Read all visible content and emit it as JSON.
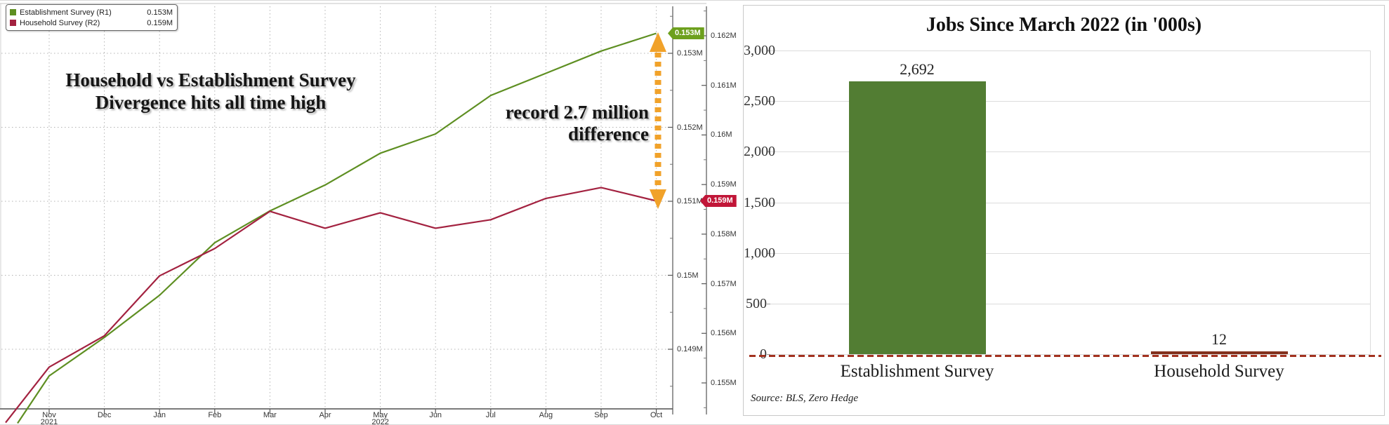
{
  "accent_colors": {
    "establishment_green": "#5e8f22",
    "household_red": "#a32240",
    "bar_green": "#527d33",
    "arrow_orange": "#f1a22a",
    "zero_line_red": "#a3321f",
    "badge_green": "#6da01e",
    "badge_red": "#c11638"
  },
  "chart_data": [
    {
      "type": "line",
      "title_annotation": [
        "Household vs Establishment Survey",
        "Divergence hits all time high"
      ],
      "difference_annotation": [
        "record 2.7 million",
        "difference"
      ],
      "x_tick_labels": [
        "Nov",
        "Dec",
        "Jan",
        "Feb",
        "Mar",
        "Apr",
        "May",
        "Jun",
        "Jul",
        "Aug",
        "Sep",
        "Oct"
      ],
      "x_year_labels": [
        {
          "month_index": 0,
          "text": "2021"
        },
        {
          "month_index": 6,
          "text": "2022"
        }
      ],
      "series": [
        {
          "name": "Establishment Survey (R1)",
          "axis": "R1",
          "color": "#5e8f22",
          "current_label": "0.153M",
          "lead_in_value": 0.148,
          "values": [
            0.14864,
            0.14916,
            0.14973,
            0.15044,
            0.15087,
            0.15122,
            0.15165,
            0.15191,
            0.15243,
            0.15273,
            0.15303,
            0.15327
          ]
        },
        {
          "name": "Household Survey (R2)",
          "axis": "R2",
          "color": "#a32240",
          "current_label": "0.159M",
          "lead_in_value": 0.1542,
          "values": [
            0.15532,
            0.15595,
            0.15716,
            0.15771,
            0.15846,
            0.15812,
            0.15843,
            0.15812,
            0.15829,
            0.15872,
            0.15894,
            0.15867
          ]
        }
      ],
      "axis_r1": {
        "tick_labels": [
          "0.153M",
          "0.152M",
          "0.151M",
          "0.15M",
          "0.149M"
        ],
        "tick_values": [
          0.153,
          0.152,
          0.151,
          0.15,
          0.149
        ]
      },
      "axis_r2": {
        "tick_labels": [
          "0.162M",
          "0.161M",
          "0.16M",
          "0.159M",
          "0.158M",
          "0.157M",
          "0.156M",
          "0.155M"
        ],
        "tick_values": [
          0.162,
          0.161,
          0.16,
          0.159,
          0.158,
          0.157,
          0.156,
          0.155
        ]
      },
      "badges": [
        {
          "text": "0.153M",
          "color": "#6da01e"
        },
        {
          "text": "0.159M",
          "color": "#c11638"
        }
      ],
      "arrow_color": "#f1a22a",
      "grid": true,
      "legend_position": "top-left"
    },
    {
      "type": "bar",
      "title": "Jobs Since March 2022 (in '000s)",
      "categories": [
        "Establishment Survey",
        "Household Survey"
      ],
      "values": [
        2692,
        12
      ],
      "value_labels": [
        "2,692",
        "12"
      ],
      "bar_colors": [
        "#527d33",
        "#82301c"
      ],
      "y_ticks": [
        {
          "value": 0,
          "label": "0"
        },
        {
          "value": 500,
          "label": "500"
        },
        {
          "value": 1000,
          "label": "1,000"
        },
        {
          "value": 1500,
          "label": "1,500"
        },
        {
          "value": 2000,
          "label": "2,000"
        },
        {
          "value": 2500,
          "label": "2,500"
        },
        {
          "value": 3000,
          "label": "3,000"
        }
      ],
      "ylim": [
        0,
        3000
      ],
      "zero_line_color": "#a3321f",
      "source": "Source: BLS, Zero Hedge",
      "grid": true,
      "legend_position": "none"
    }
  ]
}
